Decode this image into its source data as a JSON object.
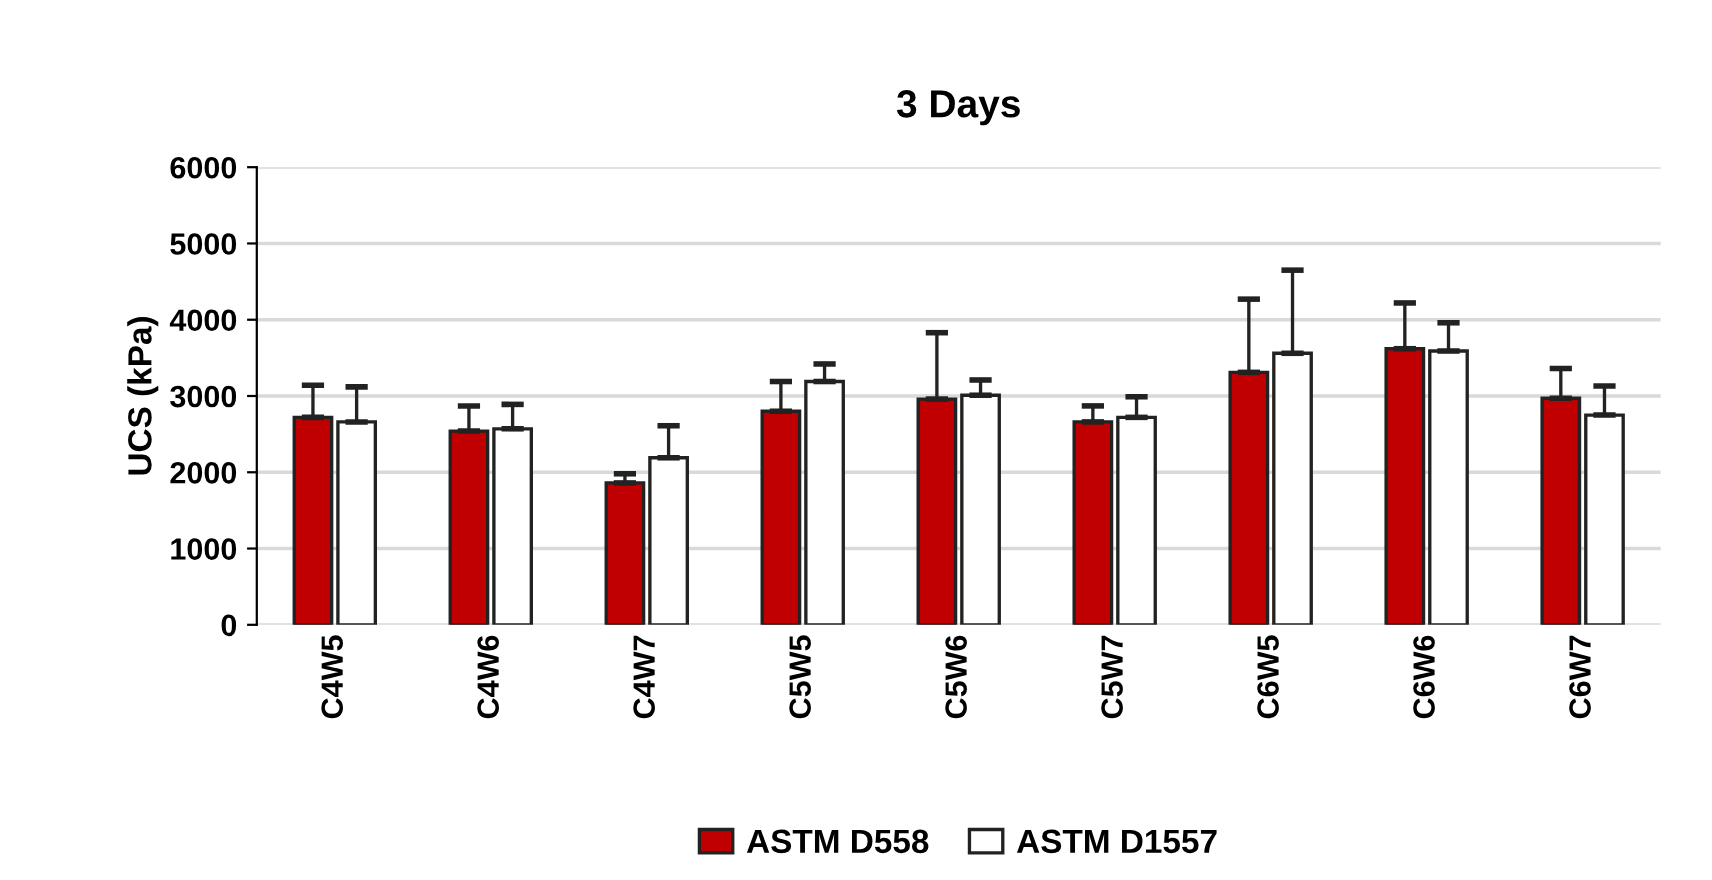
{
  "chart_data": {
    "type": "bar",
    "title": "3 Days",
    "ylabel": "UCS (kPa)",
    "categories": [
      "C4W5",
      "C4W6",
      "C4W7",
      "C5W5",
      "C5W6",
      "C5W7",
      "C6W5",
      "C6W6",
      "C6W7"
    ],
    "series": [
      {
        "name": "ASTM D558",
        "color": "#c00000",
        "values": [
          2720,
          2540,
          1860,
          2800,
          2960,
          2660,
          3310,
          3620,
          2970
        ],
        "errors": [
          [
            2720,
            3140
          ],
          [
            2540,
            2870
          ],
          [
            1860,
            1980
          ],
          [
            2800,
            3190
          ],
          [
            2960,
            3830
          ],
          [
            2660,
            2870
          ],
          [
            3310,
            4270
          ],
          [
            3620,
            4220
          ],
          [
            2970,
            3360
          ]
        ]
      },
      {
        "name": "ASTM D1557",
        "color": "#ffffff",
        "values": [
          2660,
          2570,
          2190,
          3190,
          3010,
          2720,
          3560,
          3590,
          2750
        ],
        "errors": [
          [
            2660,
            3120
          ],
          [
            2570,
            2890
          ],
          [
            2190,
            2610
          ],
          [
            3190,
            3420
          ],
          [
            3010,
            3210
          ],
          [
            2720,
            2990
          ],
          [
            3560,
            4650
          ],
          [
            3590,
            3960
          ],
          [
            2750,
            3130
          ]
        ]
      }
    ],
    "ylim": [
      0,
      6000
    ],
    "yticks": [
      0,
      1000,
      2000,
      3000,
      4000,
      5000,
      6000
    ],
    "grid": "y",
    "legend": "bottom"
  }
}
